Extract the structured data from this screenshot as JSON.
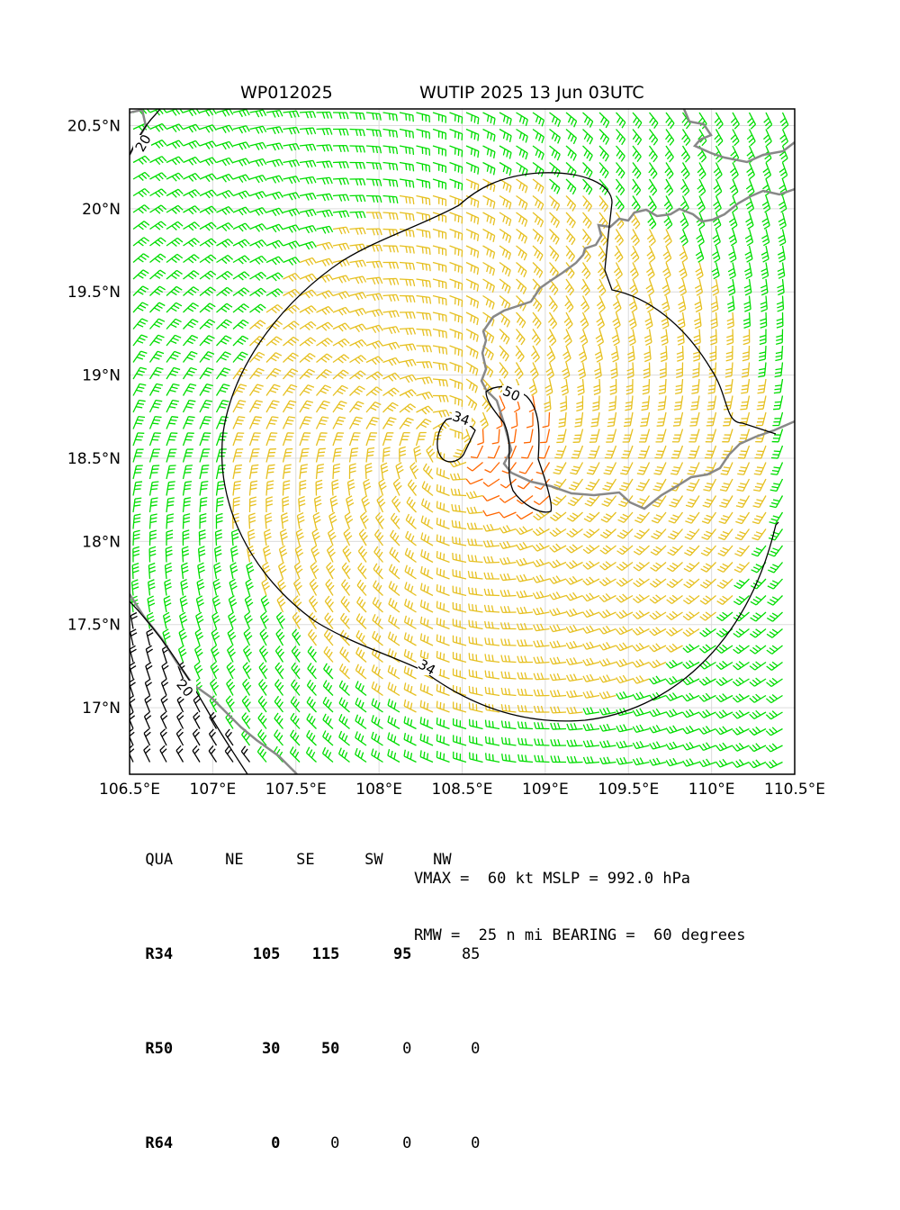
{
  "title": {
    "storm_id": "WP012025",
    "storm_info": "WUTIP 2025 13 Jun 03UTC"
  },
  "map": {
    "lon_ticks": [
      "106.5°E",
      "107°E",
      "107.5°E",
      "108°E",
      "108.5°E",
      "109°E",
      "109.5°E",
      "110°E",
      "110.5°E"
    ],
    "lat_ticks": [
      "17°N",
      "17.5°N",
      "18°N",
      "18.5°N",
      "19°N",
      "19.5°N",
      "20°N",
      "20.5°N"
    ],
    "lon_values": [
      106.5,
      107,
      107.5,
      108,
      108.5,
      109,
      109.5,
      110,
      110.5
    ],
    "lat_values": [
      17,
      17.5,
      18,
      18.5,
      19,
      19.5,
      20,
      20.5
    ],
    "lon_range": [
      106.5,
      110.5
    ],
    "lat_range": [
      16.6,
      20.6
    ],
    "grid": true,
    "contour_labels": {
      "c34_a": "34",
      "c34_b": "34",
      "c50": "50",
      "c20_a": "20",
      "c20_b": "20"
    },
    "colors": {
      "below_34kt": "#00dd00",
      "kt_34_50": "#e6c020",
      "kt_50_64": "#ff6600",
      "below_20kt": "#000000",
      "coastline": "#888888",
      "contour": "#000000"
    }
  },
  "table": {
    "header": [
      "QUA",
      "NE",
      "SE",
      "SW",
      "NW"
    ],
    "rows": [
      {
        "label": "R34",
        "values": [
          "105",
          "115",
          "95",
          "85"
        ]
      },
      {
        "label": "R50",
        "values": [
          "30",
          "50",
          "0",
          "0"
        ]
      },
      {
        "label": "R64",
        "values": [
          "0",
          "0",
          "0",
          "0"
        ]
      }
    ]
  },
  "summary": {
    "line1": "VMAX =  60 kt MSLP = 992.0 hPa",
    "line2": "RMW =  25 n mi BEARING =  60 degrees"
  }
}
